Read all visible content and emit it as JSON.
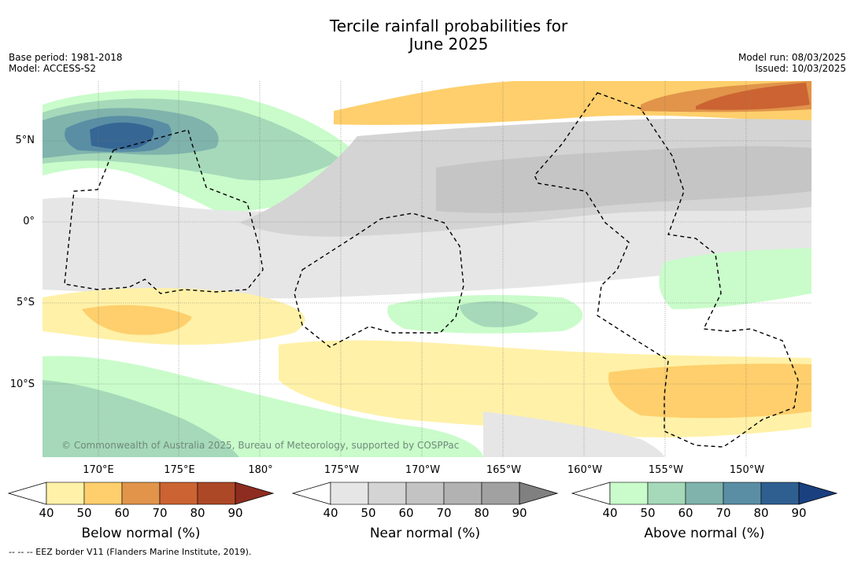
{
  "title_line1": "Tercile rainfall probabilities for",
  "title_line2": "June 2025",
  "meta_left": {
    "base_period": "Base period: 1981-2018",
    "model": "Model: ACCESS-S2"
  },
  "meta_right": {
    "model_run": "Model run: 08/03/2025",
    "issued": "Issued: 10/03/2025"
  },
  "latitude_labels": [
    "5°N",
    "0°",
    "5°S",
    "10°S"
  ],
  "longitude_labels": [
    "170°E",
    "175°E",
    "180°",
    "175°W",
    "170°W",
    "165°W",
    "160°W",
    "155°W",
    "150°W"
  ],
  "copyright": "© Commonwealth of Australia 2025, Bureau of Meteorology, supported by COSPPac",
  "colorbars": [
    {
      "label": "Below normal (%)",
      "ticks": [
        "40",
        "50",
        "60",
        "70",
        "80",
        "90"
      ],
      "colors": [
        "#fff1a8",
        "#fecf6c",
        "#e1944a",
        "#cb6332",
        "#ad4826",
        "#8f2c20"
      ]
    },
    {
      "label": "Near normal (%)",
      "ticks": [
        "40",
        "50",
        "60",
        "70",
        "80",
        "90"
      ],
      "colors": [
        "#e6e6e6",
        "#d4d4d4",
        "#c3c3c3",
        "#b2b2b2",
        "#a1a1a1",
        "#808080"
      ]
    },
    {
      "label": "Above normal (%)",
      "ticks": [
        "40",
        "50",
        "60",
        "70",
        "80",
        "90"
      ],
      "colors": [
        "#c9fcca",
        "#a5d9b9",
        "#7fb3ac",
        "#5a8ea5",
        "#2f5f91",
        "#1a4080"
      ]
    }
  ],
  "footer": "-- -- -- EEZ border V11 (Flanders Marine Institute, 2019).",
  "colors": {
    "white": "#ffffff"
  }
}
